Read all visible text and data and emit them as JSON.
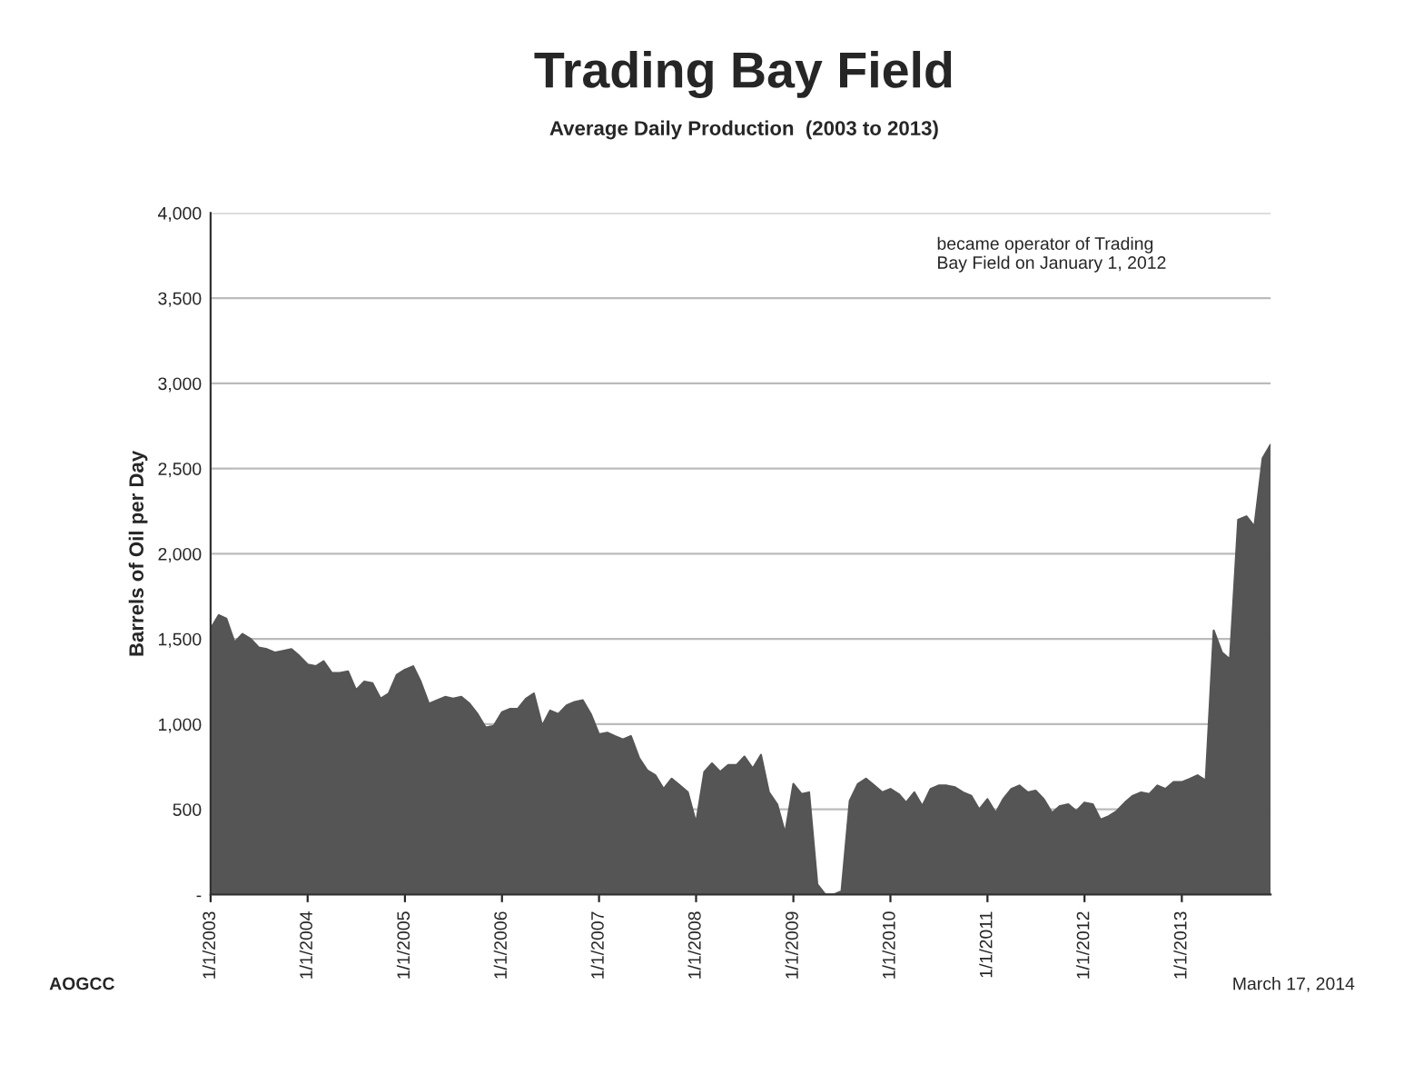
{
  "chart_data": {
    "type": "area",
    "title": "Trading Bay Field",
    "subtitle": "Average Daily Production  (2003 to 2013)",
    "ylabel": "Barrels of Oil per Day",
    "annotations": [
      "became operator of Trading\nBay Field on January 1, 2012",
      "AOGCC",
      "March 17, 2014"
    ],
    "x": [
      "2003-01",
      "2003-02",
      "2003-03",
      "2003-04",
      "2003-05",
      "2003-06",
      "2003-07",
      "2003-08",
      "2003-09",
      "2003-10",
      "2003-11",
      "2003-12",
      "2004-01",
      "2004-02",
      "2004-03",
      "2004-04",
      "2004-05",
      "2004-06",
      "2004-07",
      "2004-08",
      "2004-09",
      "2004-10",
      "2004-11",
      "2004-12",
      "2005-01",
      "2005-02",
      "2005-03",
      "2005-04",
      "2005-05",
      "2005-06",
      "2005-07",
      "2005-08",
      "2005-09",
      "2005-10",
      "2005-11",
      "2005-12",
      "2006-01",
      "2006-02",
      "2006-03",
      "2006-04",
      "2006-05",
      "2006-06",
      "2006-07",
      "2006-08",
      "2006-09",
      "2006-10",
      "2006-11",
      "2006-12",
      "2007-01",
      "2007-02",
      "2007-03",
      "2007-04",
      "2007-05",
      "2007-06",
      "2007-07",
      "2007-08",
      "2007-09",
      "2007-10",
      "2007-11",
      "2007-12",
      "2008-01",
      "2008-02",
      "2008-03",
      "2008-04",
      "2008-05",
      "2008-06",
      "2008-07",
      "2008-08",
      "2008-09",
      "2008-10",
      "2008-11",
      "2008-12",
      "2009-01",
      "2009-02",
      "2009-03",
      "2009-04",
      "2009-05",
      "2009-06",
      "2009-07",
      "2009-08",
      "2009-09",
      "2009-10",
      "2009-11",
      "2009-12",
      "2010-01",
      "2010-02",
      "2010-03",
      "2010-04",
      "2010-05",
      "2010-06",
      "2010-07",
      "2010-08",
      "2010-09",
      "2010-10",
      "2010-11",
      "2010-12",
      "2011-01",
      "2011-02",
      "2011-03",
      "2011-04",
      "2011-05",
      "2011-06",
      "2011-07",
      "2011-08",
      "2011-09",
      "2011-10",
      "2011-11",
      "2011-12",
      "2012-01",
      "2012-02",
      "2012-03",
      "2012-04",
      "2012-05",
      "2012-06",
      "2012-07",
      "2012-08",
      "2012-09",
      "2012-10",
      "2012-11",
      "2012-12",
      "2013-01",
      "2013-02",
      "2013-03",
      "2013-04",
      "2013-05",
      "2013-06",
      "2013-07",
      "2013-08",
      "2013-09",
      "2013-10",
      "2013-11",
      "2013-12"
    ],
    "series": [
      {
        "color": "#555555",
        "values": [
          1560,
          1640,
          1620,
          1480,
          1530,
          1500,
          1450,
          1440,
          1420,
          1430,
          1440,
          1400,
          1350,
          1340,
          1370,
          1300,
          1300,
          1310,
          1200,
          1250,
          1240,
          1150,
          1180,
          1290,
          1320,
          1340,
          1250,
          1120,
          1140,
          1160,
          1150,
          1160,
          1120,
          1060,
          980,
          990,
          1070,
          1090,
          1090,
          1150,
          1180,
          990,
          1080,
          1060,
          1110,
          1130,
          1140,
          1060,
          940,
          950,
          930,
          910,
          930,
          800,
          730,
          700,
          620,
          680,
          640,
          600,
          420,
          720,
          770,
          720,
          760,
          760,
          810,
          740,
          820,
          600,
          530,
          360,
          650,
          590,
          600,
          60,
          0,
          0,
          20,
          550,
          650,
          680,
          640,
          600,
          620,
          590,
          540,
          600,
          520,
          620,
          640,
          640,
          630,
          600,
          580,
          500,
          560,
          480,
          560,
          620,
          640,
          600,
          610,
          560,
          480,
          520,
          530,
          490,
          540,
          530,
          440,
          460,
          490,
          540,
          580,
          600,
          590,
          640,
          620,
          660,
          660,
          680,
          700,
          670,
          1550,
          1420,
          1380,
          2200,
          2220,
          2160,
          2560,
          2640
        ]
      }
    ],
    "xlim": [
      "2003-01-01",
      "2013-12-01"
    ],
    "xticks": [
      {
        "value": "2003-01-01",
        "label": "1/1/2003"
      },
      {
        "value": "2004-01-01",
        "label": "1/1/2004"
      },
      {
        "value": "2005-01-01",
        "label": "1/1/2005"
      },
      {
        "value": "2006-01-01",
        "label": "1/1/2006"
      },
      {
        "value": "2007-01-01",
        "label": "1/1/2007"
      },
      {
        "value": "2008-01-01",
        "label": "1/1/2008"
      },
      {
        "value": "2009-01-01",
        "label": "1/1/2009"
      },
      {
        "value": "2010-01-01",
        "label": "1/1/2010"
      },
      {
        "value": "2011-01-01",
        "label": "1/1/2011"
      },
      {
        "value": "2012-01-01",
        "label": "1/1/2012"
      },
      {
        "value": "2013-01-01",
        "label": "1/1/2013"
      }
    ],
    "ylim": [
      0,
      4000
    ],
    "yticks": [
      {
        "value": 0,
        "label": "-"
      },
      {
        "value": 500,
        "label": "500"
      },
      {
        "value": 1000,
        "label": "1,000"
      },
      {
        "value": 1500,
        "label": "1,500"
      },
      {
        "value": 2000,
        "label": "2,000"
      },
      {
        "value": 2500,
        "label": "2,500"
      },
      {
        "value": 3000,
        "label": "3,000"
      },
      {
        "value": 3500,
        "label": "3,500"
      },
      {
        "value": 4000,
        "label": "4,000"
      }
    ],
    "grid": "y",
    "legend": false
  }
}
